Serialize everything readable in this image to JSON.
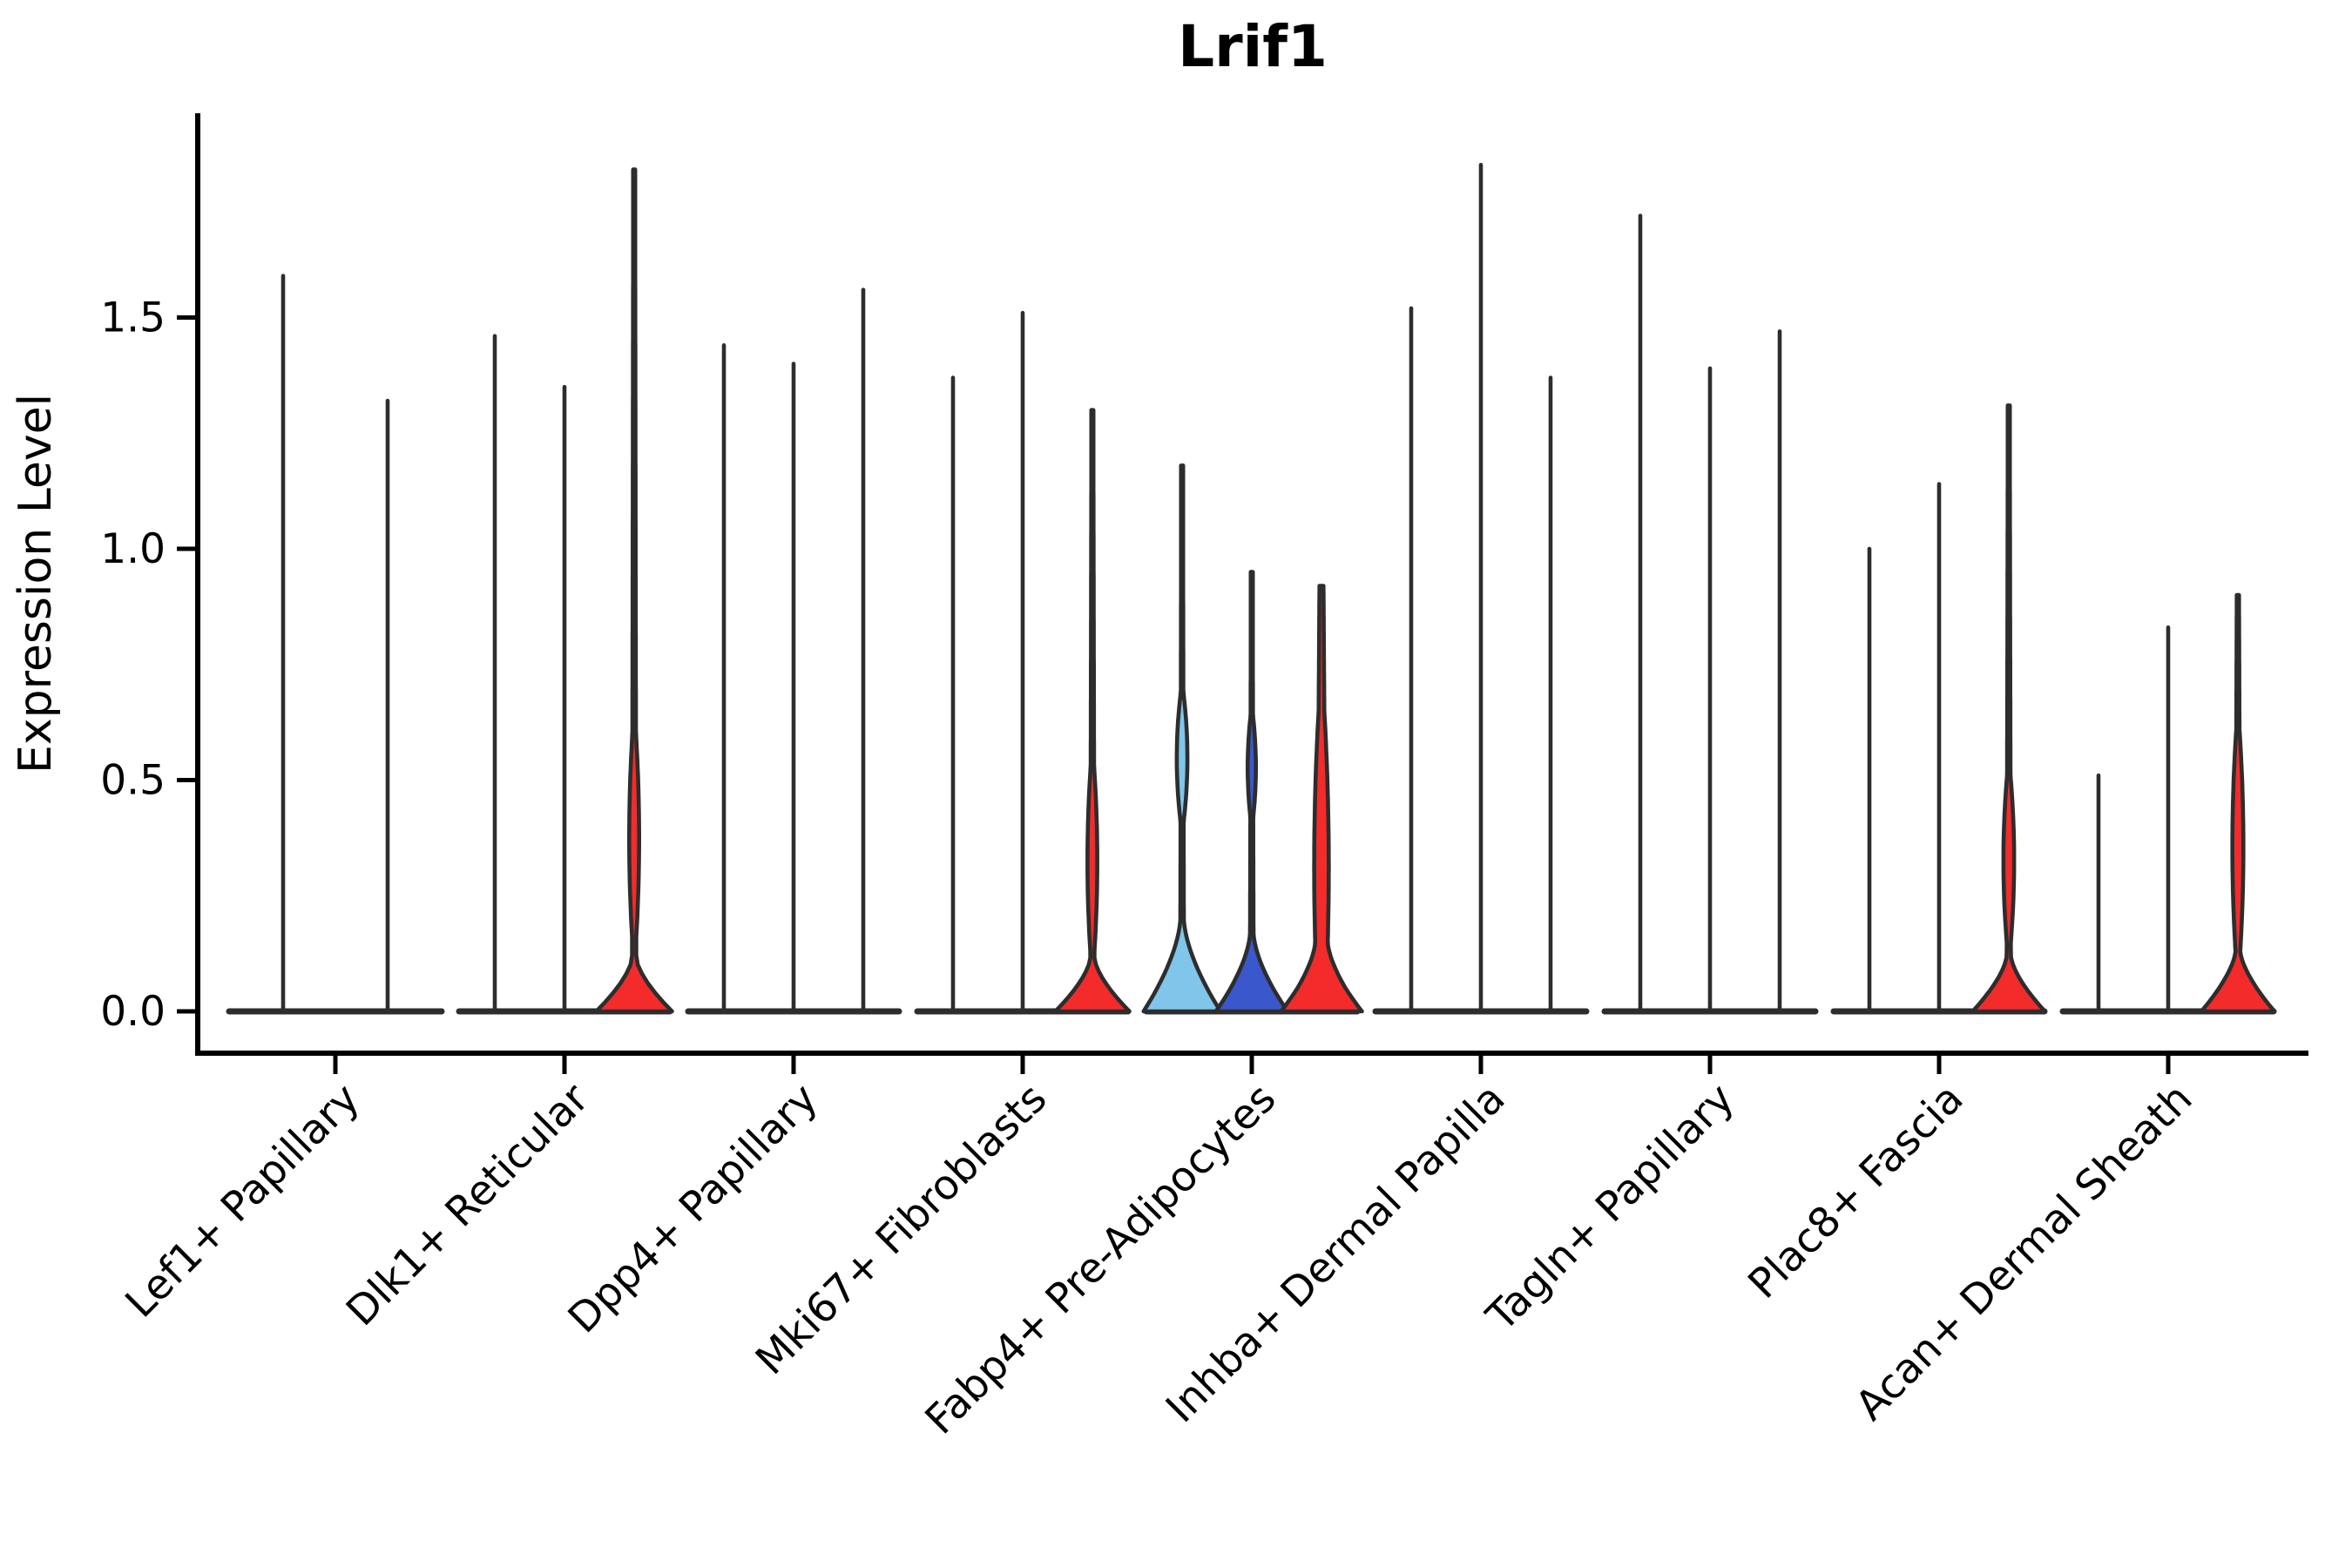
{
  "chart_data": {
    "type": "violin",
    "title": "Lrif1",
    "ylabel": "Expression Level",
    "xlabel": "",
    "grid": false,
    "legend": null,
    "ytick_labels": [
      "0.0",
      "0.5",
      "1.0",
      "1.5"
    ],
    "ytick_values": [
      0,
      0.5,
      1.0,
      1.5
    ],
    "ylim": [
      -0.09,
      1.94
    ],
    "categories": [
      "Lef1+ Papillary",
      "Dlk1+ Reticular",
      "Dpp4+ Papillary",
      "Mki67+ Fibroblasts",
      "Fabp4+ Pre-Adipocytes",
      "Inhba+ Dermal Papilla",
      "Tagln+ Papillary",
      "Plac8+ Fascia",
      "Acan+ Dermal Sheath"
    ],
    "groups": [
      {
        "category": "Lef1+ Papillary",
        "violins": [
          {
            "top": 1.59,
            "color": "ink"
          },
          {
            "top": 1.32,
            "color": "ink"
          }
        ]
      },
      {
        "category": "Dlk1+ Reticular",
        "violins": [
          {
            "top": 1.46,
            "color": "ink"
          },
          {
            "top": 1.35,
            "color": "ink"
          },
          {
            "top": 1.82,
            "color": "red",
            "profile": {
              "domeHalf": 41,
              "neck": 0.115,
              "domePow": 1.5,
              "stemHalf": 2.5,
              "lensC": 0.38,
              "lensS": 0.22,
              "lensH": 3.5
            }
          }
        ]
      },
      {
        "category": "Dpp4+ Papillary",
        "violins": [
          {
            "top": 1.44,
            "color": "ink"
          },
          {
            "top": 1.4,
            "color": "ink"
          },
          {
            "top": 1.56,
            "color": "ink"
          }
        ]
      },
      {
        "category": "Mki67+ Fibroblasts",
        "violins": [
          {
            "top": 1.37,
            "color": "ink"
          },
          {
            "top": 1.51,
            "color": "ink"
          },
          {
            "top": 1.3,
            "color": "red",
            "profile": {
              "domeHalf": 40,
              "neck": 0.115,
              "domePow": 1.5,
              "stemHalf": 2.5,
              "lensC": 0.33,
              "lensS": 0.2,
              "lensH": 3.5
            }
          }
        ]
      },
      {
        "category": "Fabp4+ Pre-Adipocytes",
        "violins": [
          {
            "top": 1.18,
            "color": "light_blue",
            "profile": {
              "domeHalf": 42,
              "neck": 0.2,
              "domePow": 1.6,
              "stemHalf": 2.2,
              "lensC": 0.55,
              "lensS": 0.14,
              "lensH": 4.5
            }
          },
          {
            "top": 0.95,
            "color": "dark_blue",
            "profile": {
              "domeHalf": 39,
              "neck": 0.17,
              "domePow": 1.6,
              "stemHalf": 2.2,
              "lensC": 0.53,
              "lensS": 0.11,
              "lensH": 3.2
            }
          },
          {
            "top": 0.92,
            "color": "red",
            "profile": {
              "domeHalf": 41,
              "neck": 0.15,
              "domePow": 1.5,
              "stemHalf": 5.5,
              "lensC": 0.35,
              "lensS": 0.3,
              "lensH": 4.0
            }
          }
        ]
      },
      {
        "category": "Inhba+ Dermal Papilla",
        "violins": [
          {
            "top": 1.52,
            "color": "ink"
          },
          {
            "top": 1.83,
            "color": "ink"
          },
          {
            "top": 1.37,
            "color": "ink"
          }
        ]
      },
      {
        "category": "Tagln+ Papillary",
        "violins": [
          {
            "top": 1.72,
            "color": "ink"
          },
          {
            "top": 1.39,
            "color": "ink"
          },
          {
            "top": 1.47,
            "color": "ink"
          }
        ]
      },
      {
        "category": "Plac8+ Fascia",
        "violins": [
          {
            "top": 1.0,
            "color": "ink"
          },
          {
            "top": 1.14,
            "color": "ink"
          },
          {
            "top": 1.31,
            "color": "red",
            "profile": {
              "domeHalf": 39,
              "neck": 0.12,
              "domePow": 1.5,
              "stemHalf": 2.5,
              "lensC": 0.33,
              "lensS": 0.18,
              "lensH": 4.0
            }
          }
        ]
      },
      {
        "category": "Acan+ Dermal Sheath",
        "violins": [
          {
            "top": 0.51,
            "color": "ink"
          },
          {
            "top": 0.83,
            "color": "ink"
          },
          {
            "top": 0.9,
            "color": "red",
            "profile": {
              "domeHalf": 39,
              "neck": 0.13,
              "domePow": 1.5,
              "stemHalf": 3.0,
              "lensC": 0.37,
              "lensS": 0.24,
              "lensH": 4.0
            }
          }
        ]
      }
    ],
    "colors": {
      "ink": "#2d2d2d",
      "red": "#f42b2b",
      "light_blue": "#7fc6ea",
      "dark_blue": "#3a57cc",
      "background": "#ffffff"
    }
  }
}
